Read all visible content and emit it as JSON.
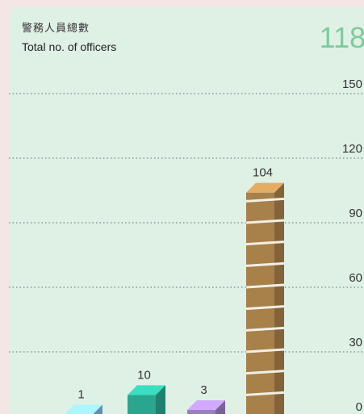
{
  "header": {
    "title_zh": "警務人員總數",
    "title_en": "Total no. of officers",
    "total": "118"
  },
  "colors": {
    "background": "#dff0e5",
    "bar_light_blue": "#7fb6e8",
    "bar_teal": "#2aa58e",
    "bar_purple": "#9b7ec2",
    "bar_brown": "#a8804a",
    "total_text": "#7ccc9a"
  },
  "chart_data": {
    "type": "bar",
    "title": "Total no. of officers",
    "ylim": [
      0,
      150
    ],
    "yticks": [
      0,
      30,
      60,
      90,
      120,
      150
    ],
    "grid": true,
    "categories": [
      "",
      "",
      "",
      ""
    ],
    "values": [
      1,
      10,
      3,
      104
    ],
    "labels": [
      "1",
      "10",
      "3",
      "104"
    ],
    "colors": [
      "#7fb6e8",
      "#2aa58e",
      "#9b7ec2",
      "#a8804a"
    ]
  }
}
